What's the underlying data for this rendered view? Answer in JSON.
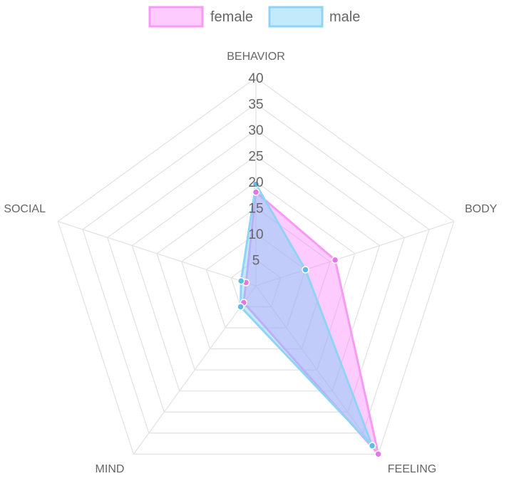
{
  "chart_data": {
    "type": "radar",
    "categories": [
      "BEHAVIOR",
      "BODY",
      "FEELING",
      "MIND",
      "SOCIAL"
    ],
    "series": [
      {
        "name": "female",
        "values": [
          18,
          16,
          40,
          4,
          2
        ],
        "fill": "rgba(250,130,250,0.42)",
        "stroke": "#f79af5",
        "point": "#e477e6"
      },
      {
        "name": "male",
        "values": [
          19.5,
          10,
          38,
          5,
          3
        ],
        "fill": "rgba(110,205,245,0.42)",
        "stroke": "#8fd3f5",
        "point": "#5cbde8"
      }
    ],
    "ticks": [
      "5",
      "10",
      "15",
      "20",
      "25",
      "30",
      "35",
      "40"
    ],
    "rmax": 40,
    "grid": true,
    "legend_position": "top"
  }
}
